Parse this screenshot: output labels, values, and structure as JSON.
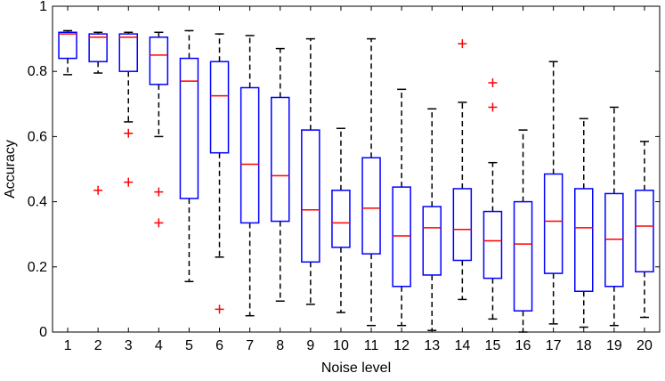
{
  "chart_data": {
    "type": "boxplot",
    "title": "",
    "xlabel": "Noise level",
    "ylabel": "Accuracy",
    "ylim": [
      0,
      1
    ],
    "xlim": [
      0.5,
      20.5
    ],
    "yticks": [
      0,
      0.2,
      0.4,
      0.6,
      0.8,
      1
    ],
    "ytick_labels": [
      "0",
      "0.2",
      "0.4",
      "0.6",
      "0.8",
      "1"
    ],
    "categories": [
      "1",
      "2",
      "3",
      "4",
      "5",
      "6",
      "7",
      "8",
      "9",
      "10",
      "11",
      "12",
      "13",
      "14",
      "15",
      "16",
      "17",
      "18",
      "19",
      "20"
    ],
    "grid": false,
    "legend": "none",
    "colors": {
      "box": "#0000ff",
      "median": "#ff0000",
      "whisker": "#000000",
      "outlier": "#ff0000",
      "axes": "#000000"
    },
    "boxes": [
      {
        "label": "1",
        "min": 0.79,
        "q1": 0.84,
        "median": 0.915,
        "q3": 0.92,
        "max": 0.925,
        "outliers": []
      },
      {
        "label": "2",
        "min": 0.795,
        "q1": 0.83,
        "median": 0.905,
        "q3": 0.915,
        "max": 0.92,
        "outliers": [
          0.435
        ]
      },
      {
        "label": "3",
        "min": 0.645,
        "q1": 0.8,
        "median": 0.905,
        "q3": 0.915,
        "max": 0.92,
        "outliers": [
          0.61,
          0.46
        ]
      },
      {
        "label": "4",
        "min": 0.6,
        "q1": 0.76,
        "median": 0.85,
        "q3": 0.905,
        "max": 0.92,
        "outliers": [
          0.43,
          0.335
        ]
      },
      {
        "label": "5",
        "min": 0.155,
        "q1": 0.41,
        "median": 0.77,
        "q3": 0.84,
        "max": 0.925,
        "outliers": []
      },
      {
        "label": "6",
        "min": 0.23,
        "q1": 0.55,
        "median": 0.725,
        "q3": 0.83,
        "max": 0.915,
        "outliers": [
          0.07
        ]
      },
      {
        "label": "7",
        "min": 0.05,
        "q1": 0.335,
        "median": 0.515,
        "q3": 0.75,
        "max": 0.91,
        "outliers": []
      },
      {
        "label": "8",
        "min": 0.095,
        "q1": 0.34,
        "median": 0.48,
        "q3": 0.72,
        "max": 0.87,
        "outliers": []
      },
      {
        "label": "9",
        "min": 0.085,
        "q1": 0.215,
        "median": 0.375,
        "q3": 0.62,
        "max": 0.9,
        "outliers": []
      },
      {
        "label": "10",
        "min": 0.06,
        "q1": 0.26,
        "median": 0.335,
        "q3": 0.435,
        "max": 0.625,
        "outliers": []
      },
      {
        "label": "11",
        "min": 0.02,
        "q1": 0.24,
        "median": 0.38,
        "q3": 0.535,
        "max": 0.9,
        "outliers": []
      },
      {
        "label": "12",
        "min": 0.02,
        "q1": 0.14,
        "median": 0.295,
        "q3": 0.445,
        "max": 0.745,
        "outliers": []
      },
      {
        "label": "13",
        "min": 0.005,
        "q1": 0.175,
        "median": 0.32,
        "q3": 0.385,
        "max": 0.685,
        "outliers": []
      },
      {
        "label": "14",
        "min": 0.1,
        "q1": 0.22,
        "median": 0.315,
        "q3": 0.44,
        "max": 0.705,
        "outliers": [
          0.885
        ]
      },
      {
        "label": "15",
        "min": 0.04,
        "q1": 0.165,
        "median": 0.28,
        "q3": 0.37,
        "max": 0.52,
        "outliers": [
          0.765,
          0.69
        ]
      },
      {
        "label": "16",
        "min": 0.0,
        "q1": 0.065,
        "median": 0.27,
        "q3": 0.4,
        "max": 0.62,
        "outliers": []
      },
      {
        "label": "17",
        "min": 0.025,
        "q1": 0.18,
        "median": 0.34,
        "q3": 0.485,
        "max": 0.83,
        "outliers": []
      },
      {
        "label": "18",
        "min": 0.015,
        "q1": 0.125,
        "median": 0.32,
        "q3": 0.44,
        "max": 0.655,
        "outliers": []
      },
      {
        "label": "19",
        "min": 0.02,
        "q1": 0.14,
        "median": 0.285,
        "q3": 0.425,
        "max": 0.69,
        "outliers": []
      },
      {
        "label": "20",
        "min": 0.045,
        "q1": 0.185,
        "median": 0.325,
        "q3": 0.435,
        "max": 0.585,
        "outliers": []
      }
    ]
  }
}
